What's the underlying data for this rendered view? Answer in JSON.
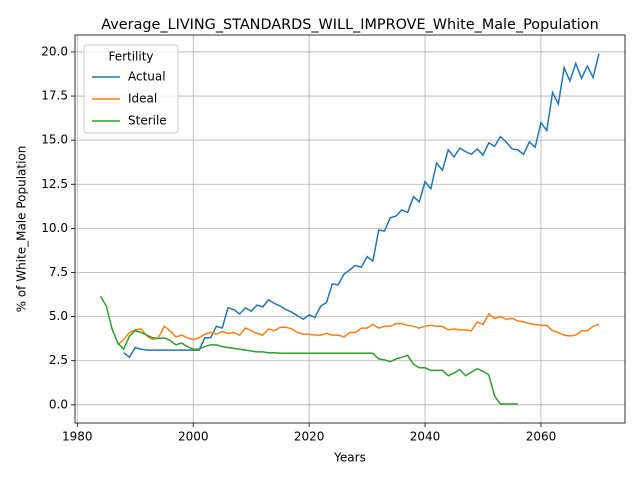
{
  "chart_data": {
    "type": "line",
    "title": "Average_LIVING_STANDARDS_WILL_IMPROVE_White_Male_Population",
    "xlabel": "Years",
    "ylabel": "% of White_Male Population",
    "x": [
      1984,
      1985,
      1986,
      1987,
      1988,
      1989,
      1990,
      1991,
      1992,
      1993,
      1994,
      1995,
      1996,
      1997,
      1998,
      1999,
      2000,
      2001,
      2002,
      2003,
      2004,
      2005,
      2006,
      2007,
      2008,
      2009,
      2010,
      2011,
      2012,
      2013,
      2014,
      2015,
      2016,
      2017,
      2018,
      2019,
      2020,
      2021,
      2022,
      2023,
      2024,
      2025,
      2026,
      2027,
      2028,
      2029,
      2030,
      2031,
      2032,
      2033,
      2034,
      2035,
      2036,
      2037,
      2038,
      2039,
      2040,
      2041,
      2042,
      2043,
      2044,
      2045,
      2046,
      2047,
      2048,
      2049,
      2050,
      2051,
      2052,
      2053,
      2054,
      2055,
      2056,
      2057,
      2058,
      2059,
      2060,
      2061,
      2062,
      2063,
      2064,
      2065,
      2066,
      2067,
      2068,
      2069,
      2070
    ],
    "series": [
      {
        "name": "Actual",
        "color": "#1f77b4",
        "values": [
          null,
          null,
          null,
          null,
          2.95,
          2.7,
          3.25,
          3.15,
          3.1,
          3.1,
          3.1,
          3.1,
          3.1,
          3.1,
          3.1,
          3.1,
          3.1,
          3.1,
          3.8,
          3.8,
          4.45,
          4.35,
          5.5,
          5.4,
          5.15,
          5.5,
          5.3,
          5.65,
          5.55,
          5.95,
          5.75,
          5.6,
          5.4,
          5.25,
          5.05,
          4.85,
          5.1,
          4.95,
          5.6,
          5.8,
          6.85,
          6.8,
          7.4,
          7.65,
          7.9,
          7.8,
          8.4,
          8.15,
          9.9,
          9.85,
          10.6,
          10.7,
          11.05,
          10.9,
          11.8,
          11.5,
          12.65,
          12.25,
          13.7,
          13.3,
          14.45,
          14.05,
          14.55,
          14.35,
          14.2,
          14.5,
          14.15,
          14.85,
          14.65,
          15.2,
          14.9,
          14.5,
          14.45,
          14.2,
          14.9,
          14.6,
          16.0,
          15.55,
          17.7,
          17.05,
          19.1,
          18.35,
          19.35,
          18.5,
          19.2,
          18.55,
          19.9
        ]
      },
      {
        "name": "Ideal",
        "color": "#ff7f0e",
        "values": [
          null,
          null,
          null,
          3.4,
          3.7,
          4.1,
          4.25,
          4.3,
          3.9,
          3.7,
          3.8,
          4.45,
          4.2,
          3.85,
          3.95,
          3.8,
          3.7,
          3.8,
          4.0,
          4.1,
          4.0,
          4.15,
          4.05,
          4.1,
          3.95,
          4.35,
          4.2,
          4.05,
          3.95,
          4.3,
          4.2,
          4.4,
          4.4,
          4.3,
          4.1,
          4.0,
          4.0,
          3.95,
          3.95,
          4.05,
          3.95,
          3.95,
          3.85,
          4.1,
          4.1,
          4.35,
          4.35,
          4.55,
          4.35,
          4.45,
          4.45,
          4.6,
          4.6,
          4.5,
          4.45,
          4.35,
          4.45,
          4.5,
          4.45,
          4.45,
          4.25,
          4.3,
          4.25,
          4.25,
          4.2,
          4.7,
          4.55,
          5.15,
          4.9,
          5.0,
          4.85,
          4.9,
          4.75,
          4.7,
          4.6,
          4.55,
          4.5,
          4.5,
          4.2,
          4.1,
          3.95,
          3.9,
          3.95,
          4.2,
          4.2,
          4.45,
          4.55
        ]
      },
      {
        "name": "Sterile",
        "color": "#2ca02c",
        "values": [
          6.15,
          5.6,
          4.3,
          3.5,
          3.15,
          3.9,
          4.2,
          4.1,
          3.95,
          3.8,
          3.75,
          3.8,
          3.65,
          3.4,
          3.5,
          3.3,
          3.15,
          3.15,
          3.3,
          3.4,
          3.4,
          3.3,
          3.25,
          3.2,
          3.15,
          3.1,
          3.05,
          3.0,
          3.0,
          2.95,
          2.95,
          2.93,
          2.92,
          2.92,
          2.92,
          2.92,
          2.92,
          2.92,
          2.92,
          2.92,
          2.92,
          2.92,
          2.92,
          2.92,
          2.92,
          2.92,
          2.92,
          2.92,
          2.6,
          2.55,
          2.45,
          2.6,
          2.7,
          2.8,
          2.3,
          2.1,
          2.1,
          1.95,
          1.95,
          1.95,
          1.65,
          1.8,
          2.0,
          1.65,
          1.85,
          2.05,
          1.9,
          1.7,
          0.5,
          0.05,
          0.05,
          0.05,
          0.05,
          null,
          null,
          null,
          null,
          null,
          null,
          null,
          null,
          null,
          null,
          null,
          null,
          null,
          null
        ]
      }
    ],
    "xlim": [
      1979.6,
      2074.5
    ],
    "ylim": [
      -1.03,
      20.96
    ],
    "xticks": [
      1980,
      2000,
      2020,
      2040,
      2060
    ],
    "yticks": [
      {
        "value": 0,
        "label": "0.0"
      },
      2.5,
      {
        "value": 5,
        "label": "5.0"
      },
      7.5,
      {
        "value": 10,
        "label": "10.0"
      },
      12.5,
      {
        "value": 15,
        "label": "15.0"
      },
      17.5,
      {
        "value": 20,
        "label": "20.0"
      }
    ],
    "grid": true,
    "legend": {
      "title": "Fertility",
      "position": "upper left"
    }
  }
}
